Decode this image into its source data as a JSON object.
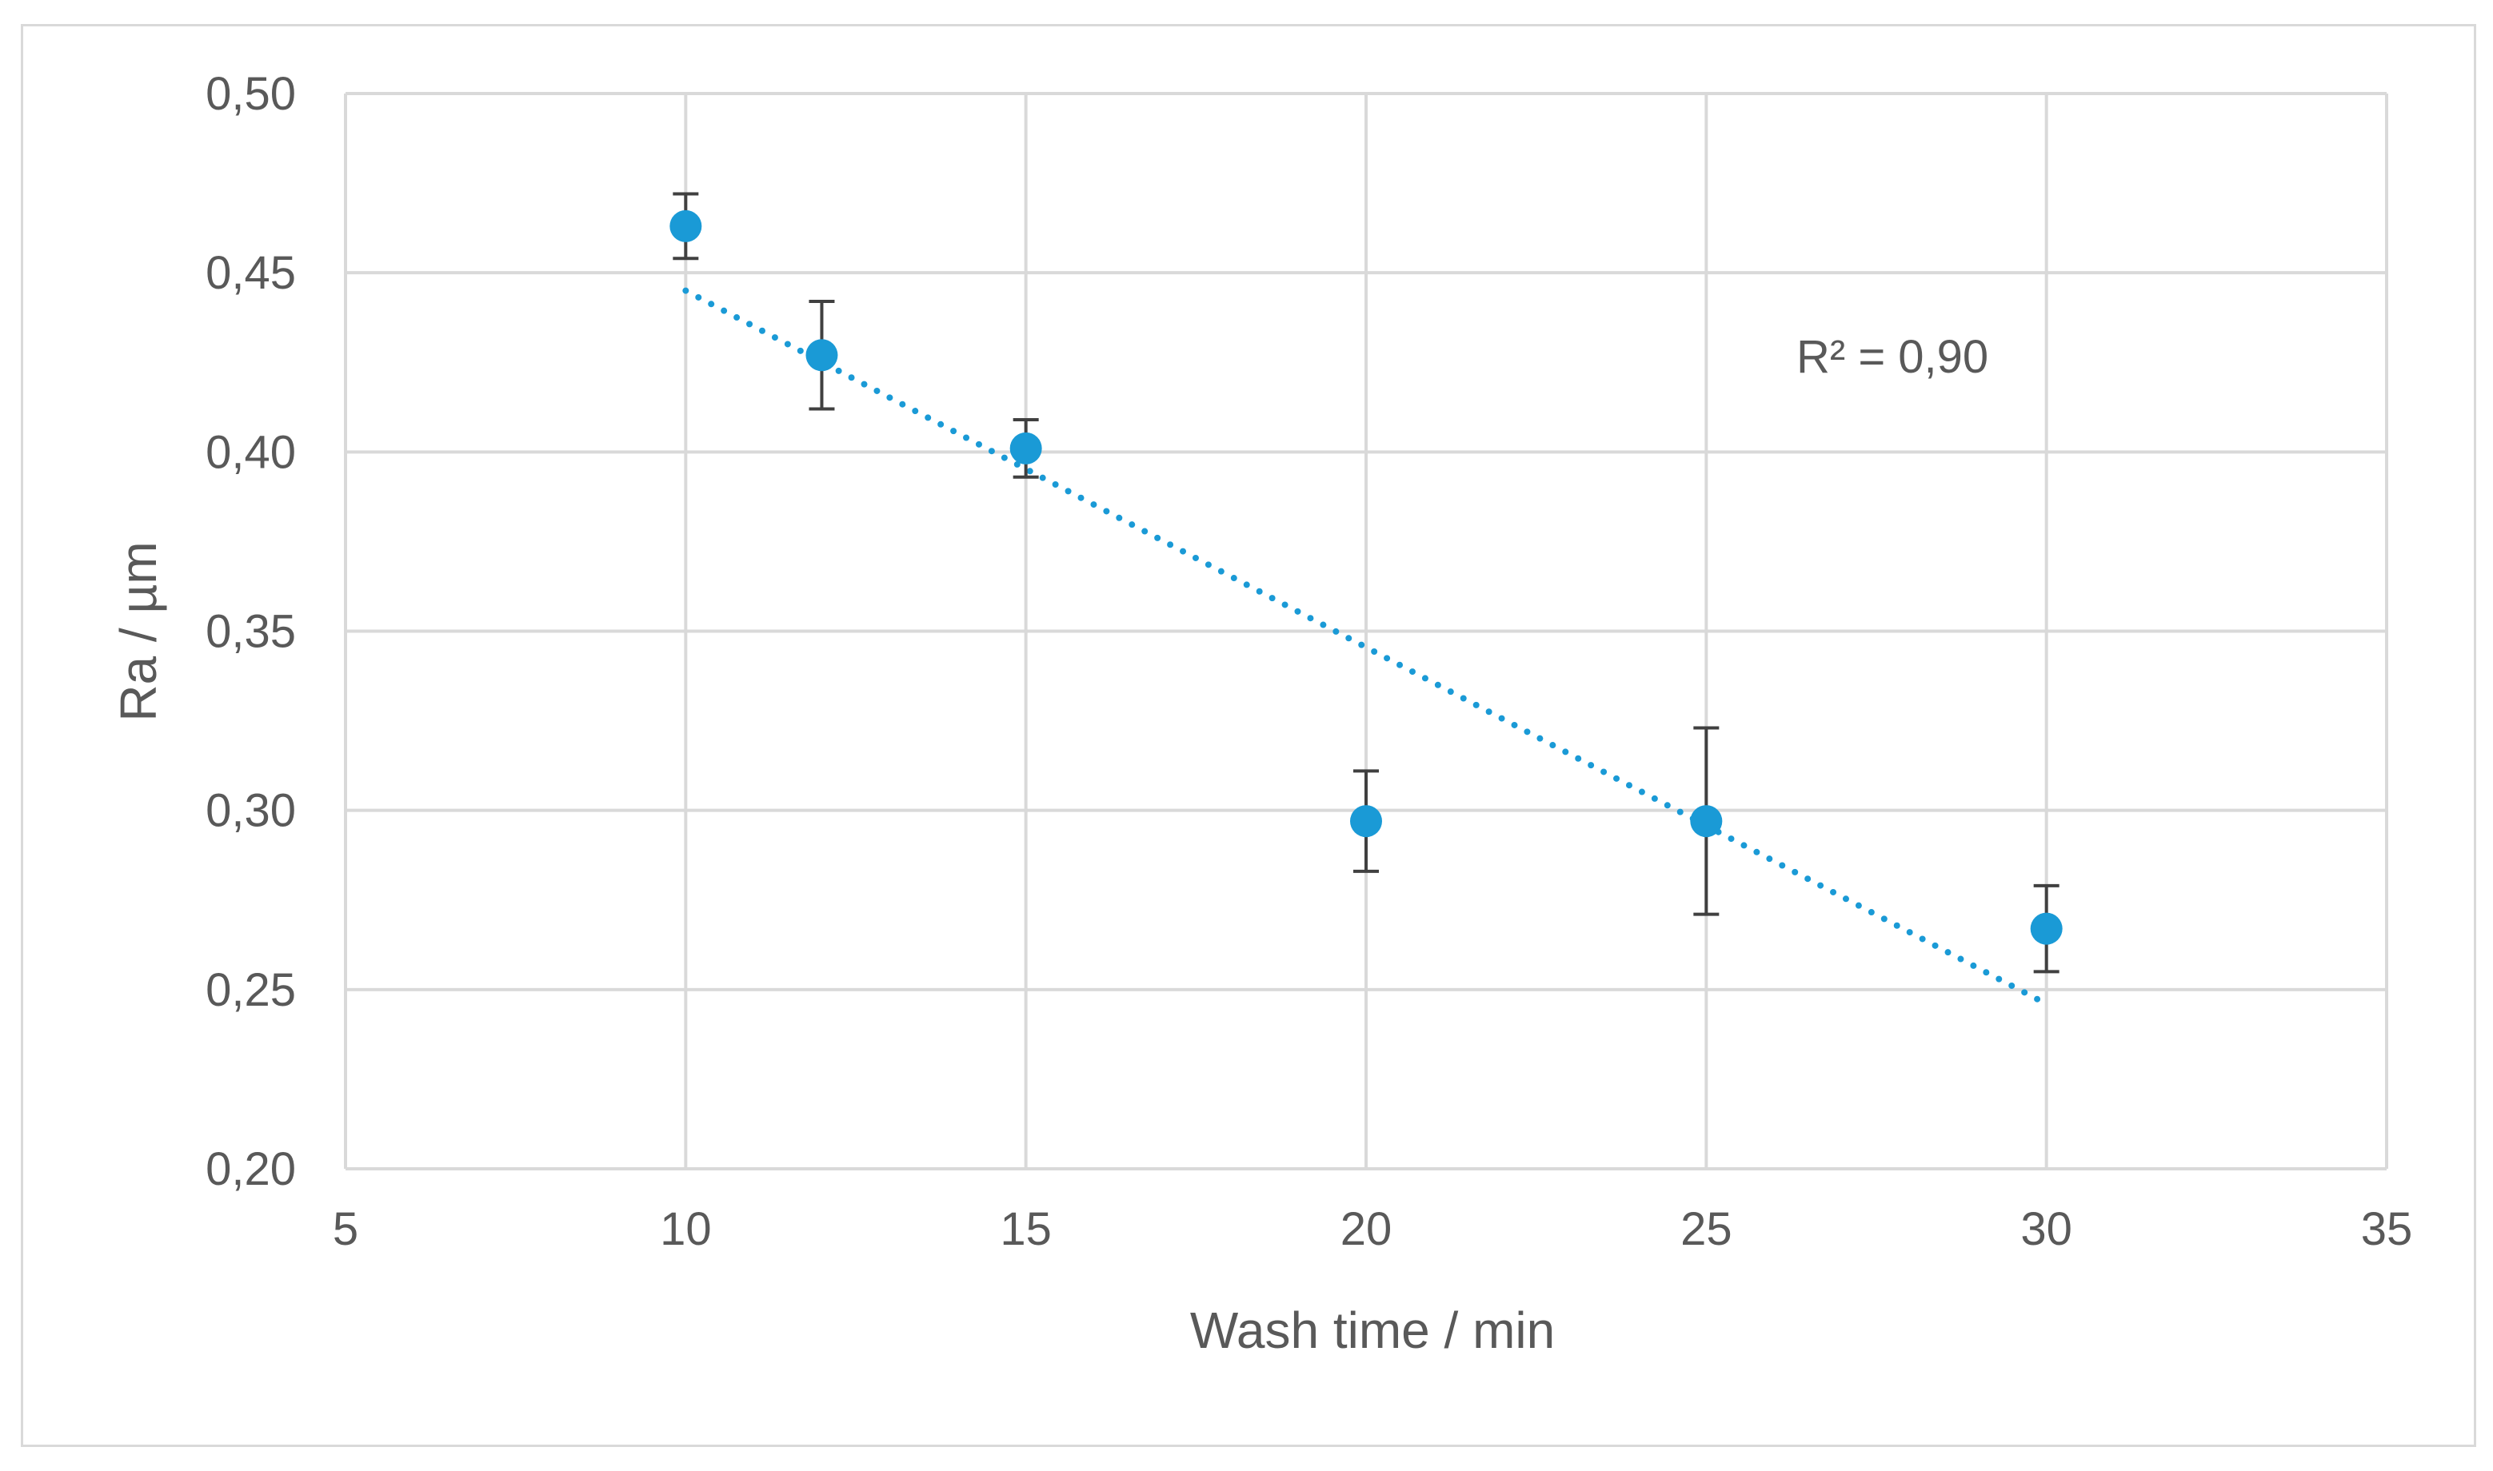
{
  "chart_data": {
    "type": "scatter",
    "title": "",
    "xlabel": "Wash time / min",
    "ylabel": "Ra / µm",
    "xlim": [
      5,
      35
    ],
    "ylim": [
      0.2,
      0.5
    ],
    "x_ticks": [
      5,
      10,
      15,
      20,
      25,
      30,
      35
    ],
    "x_tick_labels": [
      "5",
      "10",
      "15",
      "20",
      "25",
      "30",
      "35"
    ],
    "y_ticks": [
      0.2,
      0.25,
      0.3,
      0.35,
      0.4,
      0.45,
      0.5
    ],
    "y_tick_labels": [
      "0,20",
      "0,25",
      "0,30",
      "0,35",
      "0,40",
      "0,45",
      "0,50"
    ],
    "grid": true,
    "legend": "none",
    "series": [
      {
        "x": [
          10,
          12,
          15,
          20,
          25,
          30
        ],
        "y": [
          0.463,
          0.427,
          0.401,
          0.297,
          0.297,
          0.267
        ],
        "error": [
          0.009,
          0.015,
          0.008,
          0.014,
          0.026,
          0.012
        ],
        "color": "#1a9ad6",
        "error_color": "#404040"
      }
    ],
    "trendline": {
      "type": "linear",
      "style": "dotted",
      "color": "#1a9ad6",
      "x": [
        10,
        30
      ],
      "y": [
        0.445,
        0.246
      ]
    },
    "annotations": [
      {
        "text": "R² = 0,90",
        "x": 26.5,
        "y": 0.4265
      }
    ],
    "colors": {
      "grid": "#d9d9d9",
      "text": "#595959"
    }
  }
}
